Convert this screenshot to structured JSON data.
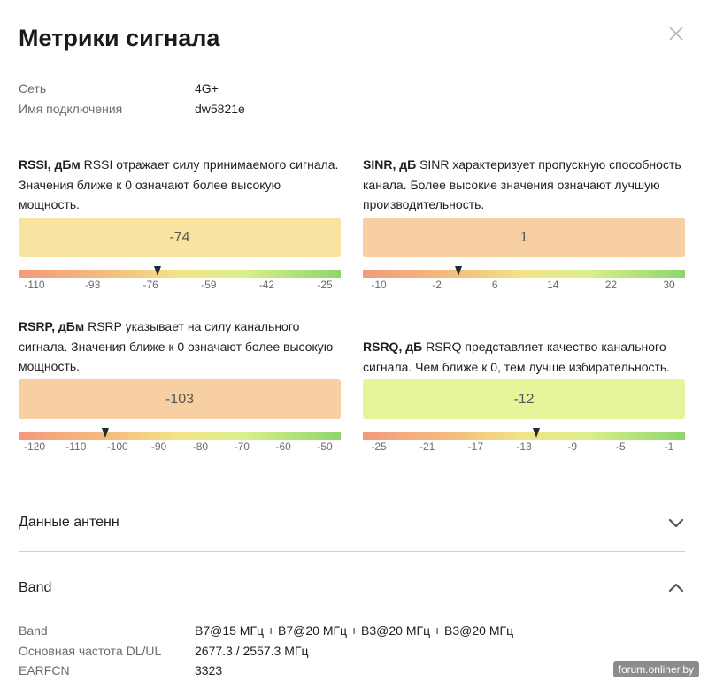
{
  "title": "Метрики сигнала",
  "info": [
    {
      "label": "Сеть",
      "value": "4G+"
    },
    {
      "label": "Имя подключения",
      "value": "dw5821e"
    }
  ],
  "metrics": {
    "rssi": {
      "name": "RSSI, дБм",
      "description": " RSSI отражает силу принимаемого сигнала. Значения ближе к 0 означают более высокую мощность.",
      "value": "-74",
      "box_color": "#f7e4a0",
      "ticks": [
        "-110",
        "-93",
        "-76",
        "-59",
        "-42",
        "-25"
      ],
      "marker_value": -74
    },
    "sinr": {
      "name": "SINR, дБ",
      "description": " SINR характеризует пропускную способность канала. Более высокие значения означают лучшую производительность.",
      "value": "1",
      "box_color": "#f7cfa2",
      "ticks": [
        "-10",
        "-2",
        "6",
        "14",
        "22",
        "30"
      ],
      "marker_value": 1
    },
    "rsrp": {
      "name": "RSRP, дБм",
      "description": " RSRP указывает на силу канального сигнала. Значения ближе к 0 означают более высокую мощность.",
      "value": "-103",
      "box_color": "#f7cfa2",
      "ticks": [
        "-120",
        "-110",
        "-100",
        "-90",
        "-80",
        "-70",
        "-60",
        "-50"
      ],
      "marker_value": -103
    },
    "rsrq": {
      "name": "RSRQ, дБ",
      "description": " RSRQ представляет качество канального сигнала. Чем ближе к 0, тем лучше избирательность.",
      "value": "-12",
      "box_color": "#e6f59b",
      "ticks": [
        "-25",
        "-21",
        "-17",
        "-13",
        "-9",
        "-5",
        "-1"
      ],
      "marker_value": -12
    }
  },
  "sections": {
    "antenna": {
      "label": "Данные антенн",
      "state": "collapsed",
      "icon": "chevron-down-icon"
    },
    "band": {
      "label": "Band",
      "state": "expanded",
      "icon": "chevron-up-icon"
    }
  },
  "band_details": [
    {
      "label": "Band",
      "value": "B7@15 МГц + B7@20 МГц + B3@20 МГц + B3@20 МГц"
    },
    {
      "label": "Основная частота DL/UL",
      "value": "2677.3 / 2557.3 МГц"
    },
    {
      "label": "EARFCN",
      "value": "3323"
    }
  ],
  "watermark": "forum.onliner.by"
}
